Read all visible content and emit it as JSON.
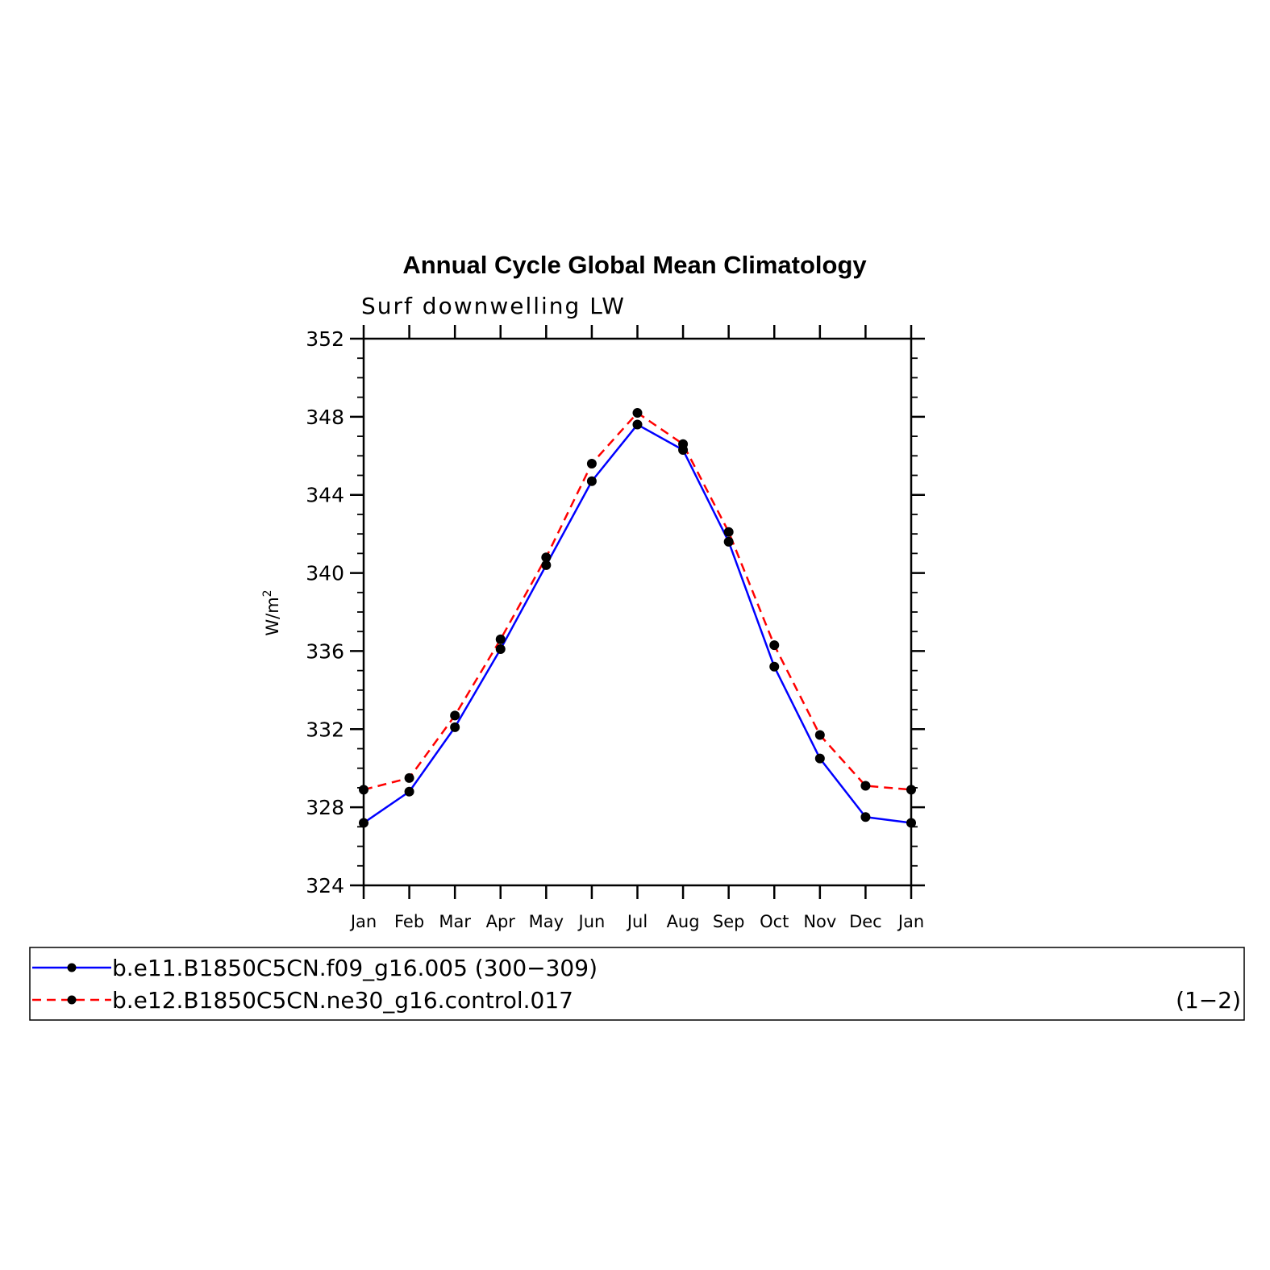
{
  "chart_data": {
    "type": "line",
    "title": "Annual Cycle Global Mean Climatology",
    "subtitle": "Surf downwelling LW",
    "ylabel_base": "W/m",
    "ylabel_sup": "2",
    "categories": [
      "Jan",
      "Feb",
      "Mar",
      "Apr",
      "May",
      "Jun",
      "Jul",
      "Aug",
      "Sep",
      "Oct",
      "Nov",
      "Dec",
      "Jan"
    ],
    "ylim": [
      324,
      352
    ],
    "yticks": [
      324,
      328,
      332,
      336,
      340,
      344,
      348,
      352
    ],
    "series": [
      {
        "name": "b.e11.B1850C5CN.f09_g16.005 (300−309)",
        "color": "#0000ff",
        "dash": "solid",
        "values": [
          327.2,
          328.8,
          332.1,
          336.1,
          340.4,
          344.7,
          347.6,
          346.3,
          341.6,
          335.2,
          330.5,
          327.5,
          327.2
        ]
      },
      {
        "name": "b.e12.B1850C5CN.ne30_g16.control.017",
        "color": "#ff0000",
        "dash": "dashed",
        "values": [
          328.9,
          329.5,
          332.7,
          336.6,
          340.8,
          345.6,
          348.2,
          346.6,
          342.1,
          336.3,
          331.7,
          329.1,
          328.9
        ]
      }
    ],
    "legend_placement": "bottom",
    "legend_note": "(1−2)",
    "grid": false
  }
}
